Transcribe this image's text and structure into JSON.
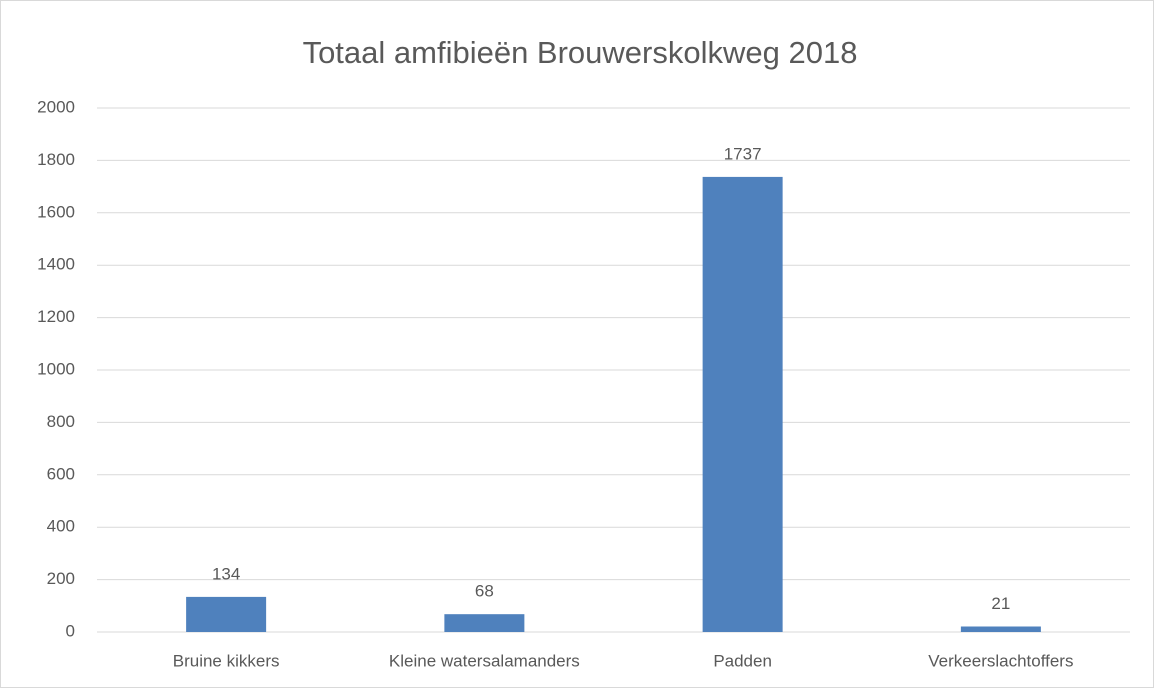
{
  "chart_data": {
    "type": "bar",
    "title": "Totaal amfibieën Brouwerskolkweg 2018",
    "categories": [
      "Bruine kikkers",
      "Kleine watersalamanders",
      "Padden",
      "Verkeerslachtoffers"
    ],
    "values": [
      134,
      68,
      1737,
      21
    ],
    "color": "#4f81bd",
    "ylim": [
      0,
      2000
    ],
    "yticks": [
      0,
      200,
      400,
      600,
      800,
      1000,
      1200,
      1400,
      1600,
      1800,
      2000
    ],
    "grid": true
  }
}
